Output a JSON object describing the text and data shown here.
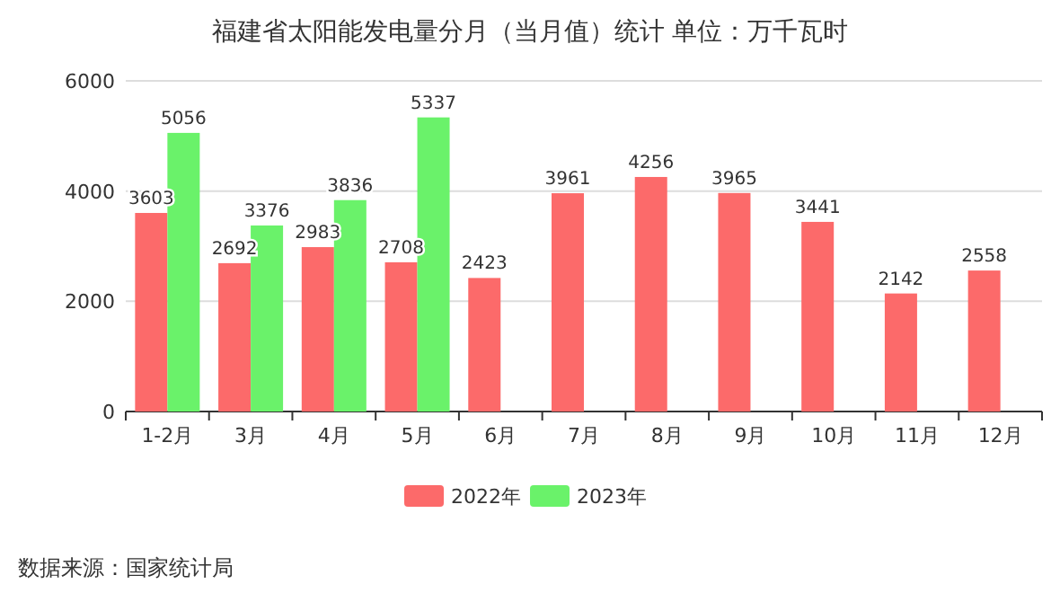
{
  "chart_data": {
    "type": "bar",
    "title": "福建省太阳能发电量分月（当月值）统计  单位：万千瓦时",
    "categories": [
      "1-2月",
      "3月",
      "4月",
      "5月",
      "6月",
      "7月",
      "8月",
      "9月",
      "10月",
      "11月",
      "12月"
    ],
    "series": [
      {
        "name": "2022年",
        "color": "#fc6a6a",
        "values": [
          3603,
          2692,
          2983,
          2708,
          2423,
          3961,
          4256,
          3965,
          3441,
          2142,
          2558
        ]
      },
      {
        "name": "2023年",
        "color": "#6af26a",
        "values": [
          5056,
          3376,
          3836,
          5337,
          null,
          null,
          null,
          null,
          null,
          null,
          null
        ]
      }
    ],
    "ylim": [
      0,
      6000
    ],
    "yticks": [
      0,
      2000,
      4000,
      6000
    ],
    "grid": "y",
    "legend": "bottom",
    "data_labels": true,
    "annotations": [
      "数据来源：国家统计局"
    ]
  }
}
